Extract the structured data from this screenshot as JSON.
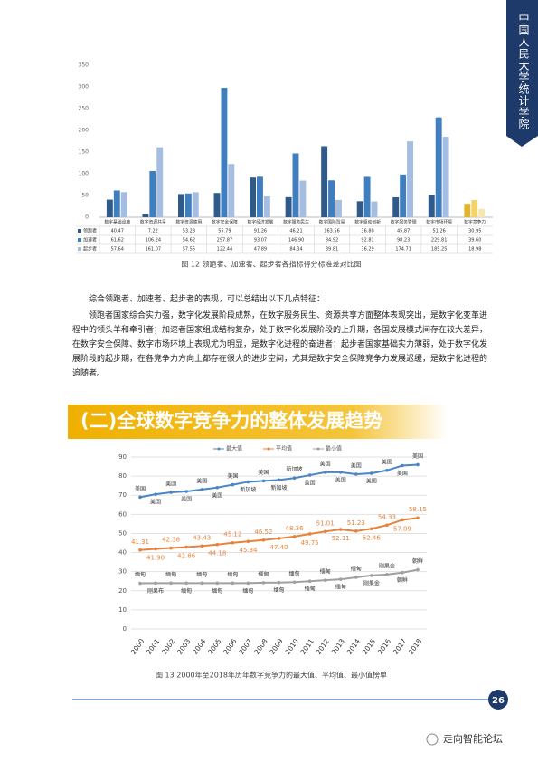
{
  "side_tab": "中国人民大学统计学院",
  "chart_data": [
    {
      "type": "bar",
      "categories": [
        "数字基础设施",
        "数字资源共享",
        "数字资源使用",
        "数字安全保障",
        "数字经济发展",
        "数字服务民生",
        "数字国际贸易",
        "数字驱动创新",
        "数字服务管理",
        "数字市场环境",
        "数字竞争力"
      ],
      "series": [
        {
          "name": "领跑者",
          "color": "#2f5a8a",
          "values": [
            40.47,
            7.22,
            53.28,
            55.79,
            91.26,
            46.21,
            163.56,
            36.8,
            45.87,
            51.26,
            30.95
          ],
          "value_labels": [
            "40.47",
            "7.22",
            "53.28",
            "55.79",
            "91.26",
            "46.21",
            "163.56",
            "36.80",
            "45.87",
            "51.26",
            "30.95"
          ]
        },
        {
          "name": "加速者",
          "color": "#3f7fc0",
          "values": [
            61.62,
            106.24,
            54.62,
            297.87,
            93.07,
            146.9,
            84.92,
            92.81,
            98.23,
            229.81,
            39.6
          ],
          "value_labels": [
            "61.62",
            "106.24",
            "54.62",
            "297.87",
            "93.07",
            "146.90",
            "84.92",
            "92.81",
            "98.23",
            "229.81",
            "39.60"
          ]
        },
        {
          "name": "起步者",
          "color": "#a5bde0",
          "values": [
            57.64,
            161.07,
            57.55,
            122.44,
            47.89,
            84.34,
            39.81,
            36.29,
            174.71,
            185.25,
            18.98
          ],
          "value_labels": [
            "57.64",
            "161.07",
            "57.55",
            "122.44",
            "47.89",
            "84.34",
            "39.81",
            "36.29",
            "174.71",
            "185.25",
            "18.98"
          ]
        }
      ],
      "highlight_category": "数字竞争力",
      "highlight_colors": [
        "#e3b52c",
        "#f2d36c",
        "#f7e6ae"
      ],
      "ylim": [
        0,
        350
      ],
      "yticks": [
        0,
        50,
        100,
        150,
        200,
        250,
        300,
        350
      ],
      "grid": false,
      "caption": "图 12 领跑者、加速者、起步者各指标得分标准差对比图"
    },
    {
      "type": "line",
      "x": [
        2000,
        2001,
        2002,
        2003,
        2004,
        2005,
        2006,
        2007,
        2008,
        2009,
        2010,
        2011,
        2012,
        2013,
        2014,
        2015,
        2016,
        2017,
        2018
      ],
      "xlim": [
        2000,
        2018
      ],
      "series": [
        {
          "name": "最大值",
          "color": "#4a86c5",
          "values": [
            69,
            70.5,
            71.5,
            72,
            73,
            74,
            75.5,
            77,
            77.5,
            78,
            79,
            80.5,
            82,
            82,
            81,
            81.5,
            83,
            85.5,
            86
          ],
          "point_labels": [
            "美国",
            "美国",
            "美国",
            "美国",
            "美国",
            "美国",
            "美国",
            "新加坡",
            "美国",
            "新加坡",
            "新加坡",
            "美国",
            "美国",
            "美国",
            "美国",
            "美国",
            "美国",
            "美国",
            "美国"
          ]
        },
        {
          "name": "平均值",
          "color": "#e8823a",
          "values": [
            41.31,
            41.9,
            42.38,
            42.86,
            43.43,
            44.18,
            45.12,
            45.84,
            46.52,
            47.4,
            48.36,
            49.75,
            51.01,
            52.11,
            51.23,
            52.46,
            54.33,
            57.09,
            58.15
          ],
          "value_labels": [
            "41.31",
            "41.90",
            "42.38",
            "42.86",
            "43.43",
            "44.18",
            "45.12",
            "45.84",
            "46.52",
            "47.40",
            "48.36",
            "49.75",
            "51.01",
            "52.11",
            "51.23",
            "52.46",
            "54.33",
            "57.09",
            "58.15"
          ]
        },
        {
          "name": "最小值",
          "color": "#a0a0a0",
          "values": [
            23.9,
            24,
            24,
            24,
            24,
            24,
            24,
            24,
            24.2,
            24.3,
            24.5,
            25,
            25.5,
            26,
            27,
            28,
            28.5,
            29.5,
            31
          ],
          "point_labels": [
            "缅甸",
            "刚果布",
            "缅甸",
            "缅甸",
            "缅甸",
            "缅甸",
            "缅甸",
            "缅甸",
            "缅甸",
            "缅甸",
            "缅甸",
            "缅甸",
            "缅甸",
            "缅甸",
            "缅甸",
            "刚果金",
            "刚果金",
            "朝鲜",
            "朝鲜"
          ]
        }
      ],
      "ylim": [
        0,
        90
      ],
      "yticks": [
        0,
        10,
        20,
        30,
        40,
        50,
        60,
        70,
        80,
        90
      ],
      "grid": true,
      "caption": "图 13 2000年至2018年历年数字竞争力的最大值、平均值、最小值榜单"
    }
  ],
  "paragraphs": [
    "综合领跑者、加速者、起步者的表现，可以总结出以下几点特征：",
    "领跑者国家综合实力强，数字化发展阶段成熟，在数字服务民生、资源共享方面整体表现突出，是数字化变革进程中的领头羊和牵引者；加速者国家组成结构复杂，处于数字化发展阶段的上升期，各国发展模式间存在较大差异，在数字安全保障、数字市场环境上表现尤为明显，是数字化进程的奋进者；起步者国家基础实力薄弱，处于数字化发展阶段的起步期，在各竞争力方向上都存在很大的进步空间，尤其是数字安全保障竞争力发展迟缓，是数字化进程的追随者。"
  ],
  "section_heading": "(二)全球数字竞争力的整体发展趋势",
  "page_number": 26,
  "watermark": "走向智能论坛"
}
